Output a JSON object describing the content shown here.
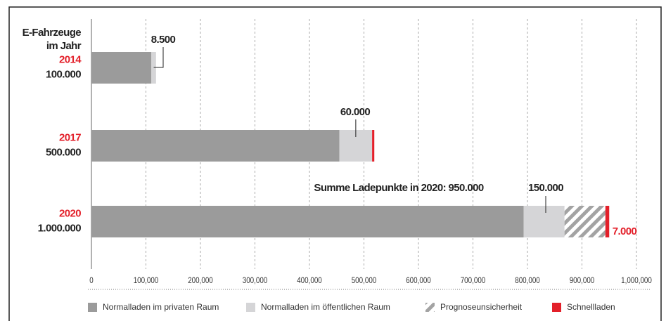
{
  "chart_data": {
    "type": "stacked-barh",
    "y_axis_label": [
      "E-Fahrzeuge",
      "im Jahr"
    ],
    "categories": [
      "2014",
      "2017",
      "2020"
    ],
    "category_sublabels": [
      "100.000",
      "500.000",
      "1.000.000"
    ],
    "series": [
      {
        "name": "Normalladen im privaten Raum",
        "color": "#9b9b9b",
        "values": [
          110000,
          455000,
          793000
        ]
      },
      {
        "name": "Normalladen im öffentlichen Raum",
        "color": "#d5d5d7",
        "values": [
          8500,
          60000,
          75000
        ],
        "value_labels": [
          "8.500",
          "60.000",
          null
        ]
      },
      {
        "name": "Prognoseunsicherheit",
        "color": "#a3a3a3",
        "hatched": true,
        "values": [
          null,
          null,
          75000
        ]
      },
      {
        "name": "Schnellladen",
        "color": "#e3202a",
        "values": [
          null,
          4000,
          7000
        ],
        "value_labels": [
          null,
          null,
          "7.000"
        ]
      }
    ],
    "annotations": [
      "Summe Ladepunkte in 2020: 950.000",
      "150.000"
    ],
    "xlim": [
      0,
      1000000
    ],
    "xticks": [
      0,
      {
        "value": 100000,
        "label": "100,000"
      },
      {
        "value": 200000,
        "label": "200,000"
      },
      {
        "value": 300000,
        "label": "300,000"
      },
      {
        "value": 400000,
        "label": "400,000"
      },
      {
        "value": 500000,
        "label": "500,000"
      },
      {
        "value": 600000,
        "label": "600,000"
      },
      {
        "value": 700000,
        "label": "700,000"
      },
      {
        "value": 800000,
        "label": "800,000"
      },
      {
        "value": 900000,
        "label": "900,000"
      },
      {
        "value": 1000000,
        "label": "1,000,000"
      }
    ],
    "grid": true
  }
}
